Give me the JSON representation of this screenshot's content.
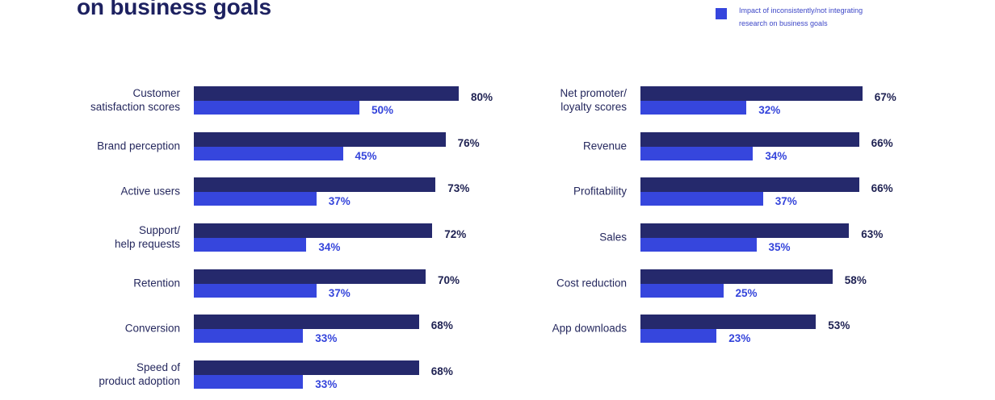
{
  "title": "on business goals",
  "legend": {
    "label": "Impact of inconsistently/not integrating\nresearch on business goals",
    "color": "#3646dd",
    "text_color": "#3d47c7"
  },
  "colors": {
    "title": "#1d2160",
    "category_label": "#25285e",
    "dark_value_label": "#1e2152",
    "light_value_label": "#3444db"
  },
  "chart_data": [
    {
      "type": "bar",
      "orientation": "horizontal",
      "unit": "%",
      "categories": [
        "Customer\nsatisfaction scores",
        "Brand perception",
        "Active users",
        "Support/\nhelp requests",
        "Retention",
        "Conversion",
        "Speed of\nproduct adoption"
      ],
      "series": [
        {
          "color": "#25296c",
          "values": [
            80,
            76,
            73,
            72,
            70,
            68,
            68
          ]
        },
        {
          "color": "#3646dd",
          "values": [
            50,
            45,
            37,
            34,
            37,
            33,
            33
          ]
        }
      ],
      "xlim": [
        0,
        100
      ],
      "grid": false,
      "legend_position": "top-right"
    },
    {
      "type": "bar",
      "orientation": "horizontal",
      "unit": "%",
      "categories": [
        "Net promoter/\nloyalty scores",
        "Revenue",
        "Profitability",
        "Sales",
        "Cost reduction",
        "App downloads"
      ],
      "series": [
        {
          "color": "#25296c",
          "values": [
            67,
            66,
            66,
            63,
            58,
            53
          ]
        },
        {
          "color": "#3646dd",
          "values": [
            32,
            34,
            37,
            35,
            25,
            23
          ]
        }
      ],
      "xlim": [
        0,
        100
      ],
      "grid": false,
      "legend_position": "top-right"
    }
  ]
}
